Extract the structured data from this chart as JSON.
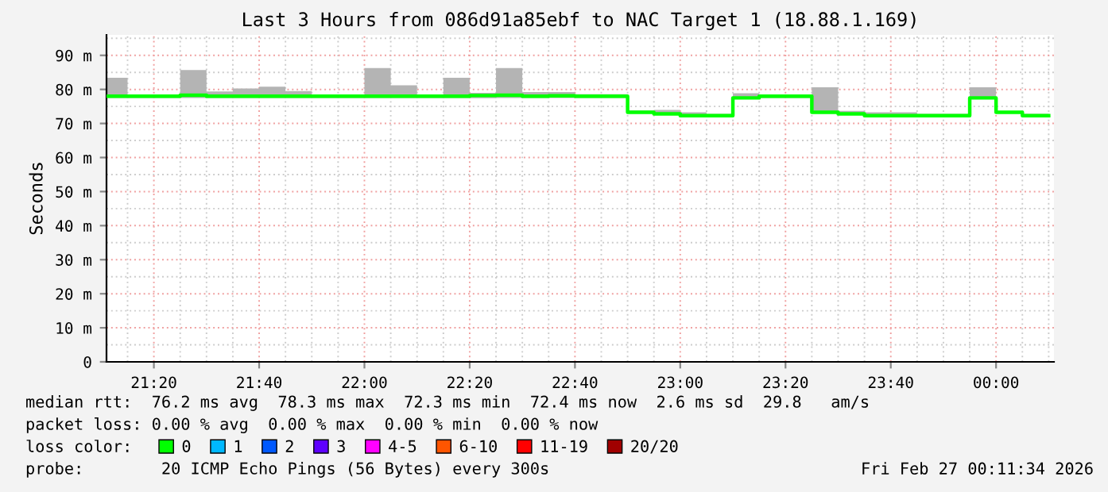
{
  "chart_data": {
    "type": "step",
    "title": "Last 3 Hours from 086d91a85ebf to NAC Target 1 (18.88.1.169)",
    "ylabel": "Seconds",
    "x": [
      "2026-02-26T21:11",
      "2026-02-26T21:15",
      "2026-02-26T21:20",
      "2026-02-26T21:25",
      "2026-02-26T21:30",
      "2026-02-26T21:35",
      "2026-02-26T21:40",
      "2026-02-26T21:45",
      "2026-02-26T21:50",
      "2026-02-26T21:55",
      "2026-02-26T22:00",
      "2026-02-26T22:05",
      "2026-02-26T22:10",
      "2026-02-26T22:15",
      "2026-02-26T22:20",
      "2026-02-26T22:25",
      "2026-02-26T22:30",
      "2026-02-26T22:35",
      "2026-02-26T22:40",
      "2026-02-26T22:45",
      "2026-02-26T22:50",
      "2026-02-26T22:55",
      "2026-02-26T23:00",
      "2026-02-26T23:05",
      "2026-02-26T23:10",
      "2026-02-26T23:15",
      "2026-02-26T23:20",
      "2026-02-26T23:25",
      "2026-02-26T23:30",
      "2026-02-26T23:35",
      "2026-02-26T23:40",
      "2026-02-26T23:45",
      "2026-02-26T23:50",
      "2026-02-26T23:55",
      "2026-02-27T00:00",
      "2026-02-27T00:05",
      "2026-02-27T00:10"
    ],
    "series": [
      {
        "name": "0",
        "color": "#00ff00",
        "values": [
          78,
          78,
          78,
          78.3,
          78,
          78,
          78,
          78,
          78,
          78,
          78,
          78,
          78,
          78,
          78.2,
          78.3,
          78,
          78.1,
          78,
          78,
          73.3,
          72.8,
          72.3,
          72.3,
          77.5,
          78,
          78,
          73.3,
          72.8,
          72.3,
          72.3,
          72.3,
          72.3,
          77.5,
          73.3,
          72.3,
          72.3
        ],
        "lower": [
          77.5,
          77.5,
          77.5,
          77.5,
          77.5,
          77.5,
          77.5,
          77.5,
          77.5,
          77.5,
          77.5,
          77.5,
          77.5,
          77.5,
          77.4,
          77.5,
          77.5,
          77.5,
          77.5,
          77.5,
          73,
          72.5,
          72,
          72,
          77.2,
          77.5,
          77.5,
          73,
          72.5,
          72,
          72,
          72,
          72,
          77.2,
          73,
          72,
          72
        ],
        "upper": [
          83.4,
          78.5,
          78.5,
          85.7,
          79.4,
          80.3,
          80.8,
          79.5,
          78.5,
          78.5,
          86.3,
          81.2,
          78.5,
          83.4,
          79,
          86.3,
          79.2,
          79.2,
          78.6,
          78.6,
          73.8,
          74,
          73.3,
          72.8,
          78.9,
          78.5,
          78.5,
          80.6,
          73.7,
          73.3,
          73.3,
          72.8,
          72.8,
          80.6,
          73.6,
          72.8,
          72.8
        ]
      },
      {
        "name": "1",
        "color": "#00b8ff",
        "values": [
          null,
          null,
          null,
          null,
          null,
          null,
          null,
          null,
          null,
          null,
          null,
          null,
          null,
          null,
          null,
          null,
          null,
          null,
          null,
          null,
          null,
          null,
          null,
          null,
          null,
          null,
          null,
          null,
          null,
          null,
          null,
          null,
          null,
          null,
          null,
          null,
          null
        ]
      },
      {
        "name": "2",
        "color": "#0059ff",
        "values": [
          null,
          null,
          null,
          null,
          null,
          null,
          null,
          null,
          null,
          null,
          null,
          null,
          null,
          null,
          null,
          null,
          null,
          null,
          null,
          null,
          null,
          null,
          null,
          null,
          null,
          null,
          null,
          null,
          null,
          null,
          null,
          null,
          null,
          null,
          null,
          null,
          null
        ]
      },
      {
        "name": "3",
        "color": "#5e00ff",
        "values": [
          null,
          null,
          null,
          null,
          null,
          null,
          null,
          null,
          null,
          null,
          null,
          null,
          null,
          null,
          null,
          null,
          null,
          null,
          null,
          null,
          null,
          null,
          null,
          null,
          null,
          null,
          null,
          null,
          null,
          null,
          null,
          null,
          null,
          null,
          null,
          null,
          null
        ]
      },
      {
        "name": "4-5",
        "color": "#ff00ff",
        "values": [
          null,
          null,
          null,
          null,
          null,
          null,
          null,
          null,
          null,
          null,
          null,
          null,
          null,
          null,
          null,
          null,
          null,
          null,
          null,
          null,
          null,
          null,
          null,
          null,
          null,
          null,
          null,
          null,
          null,
          null,
          null,
          null,
          null,
          null,
          null,
          null,
          null
        ]
      },
      {
        "name": "6-10",
        "color": "#ff5500",
        "values": [
          null,
          null,
          null,
          null,
          null,
          null,
          null,
          null,
          null,
          null,
          null,
          null,
          null,
          null,
          null,
          null,
          null,
          null,
          null,
          null,
          null,
          null,
          null,
          null,
          null,
          null,
          null,
          null,
          null,
          null,
          null,
          null,
          null,
          null,
          null,
          null,
          null
        ]
      },
      {
        "name": "11-19",
        "color": "#ff0000",
        "values": [
          null,
          null,
          null,
          null,
          null,
          null,
          null,
          null,
          null,
          null,
          null,
          null,
          null,
          null,
          null,
          null,
          null,
          null,
          null,
          null,
          null,
          null,
          null,
          null,
          null,
          null,
          null,
          null,
          null,
          null,
          null,
          null,
          null,
          null,
          null,
          null,
          null
        ]
      },
      {
        "name": "20/20",
        "color": "#a10000",
        "values": [
          null,
          null,
          null,
          null,
          null,
          null,
          null,
          null,
          null,
          null,
          null,
          null,
          null,
          null,
          null,
          null,
          null,
          null,
          null,
          null,
          null,
          null,
          null,
          null,
          null,
          null,
          null,
          null,
          null,
          null,
          null,
          null,
          null,
          null,
          null,
          null,
          null
        ]
      }
    ],
    "legend_title": "loss color:",
    "legend": "bottom",
    "grid": true,
    "xlim": [
      "2026-02-26T21:11",
      "2026-02-27T00:11"
    ],
    "xticks": [
      {
        "value": "2026-02-26T21:20",
        "label": "21:20"
      },
      {
        "value": "2026-02-26T21:40",
        "label": "21:40"
      },
      {
        "value": "2026-02-26T22:00",
        "label": "22:00"
      },
      {
        "value": "2026-02-26T22:20",
        "label": "22:20"
      },
      {
        "value": "2026-02-26T22:40",
        "label": "22:40"
      },
      {
        "value": "2026-02-26T23:00",
        "label": "23:00"
      },
      {
        "value": "2026-02-26T23:20",
        "label": "23:20"
      },
      {
        "value": "2026-02-26T23:40",
        "label": "23:40"
      },
      {
        "value": "2026-02-27T00:00",
        "label": "00:00"
      }
    ],
    "ylim": [
      0,
      96
    ],
    "yticks": [
      0,
      {
        "value": 10,
        "label": "10 m"
      },
      {
        "value": 20,
        "label": "20 m"
      },
      {
        "value": 30,
        "label": "30 m"
      },
      {
        "value": 40,
        "label": "40 m"
      },
      {
        "value": 50,
        "label": "50 m"
      },
      {
        "value": 60,
        "label": "60 m"
      },
      {
        "value": 70,
        "label": "70 m"
      },
      {
        "value": 80,
        "label": "80 m"
      },
      {
        "value": 90,
        "label": "90 m"
      }
    ],
    "annotations": [
      "median rtt:  76.2 ms avg  78.3 ms max  72.3 ms min  72.4 ms now  2.6 ms sd  29.8   am/s",
      "packet loss: 0.00 % avg  0.00 % max  0.00 % min  0.00 % now",
      "probe:        20 ICMP Echo Pings (56 Bytes) every 300s",
      "Fri Feb 27 00:11:34 2026"
    ]
  }
}
